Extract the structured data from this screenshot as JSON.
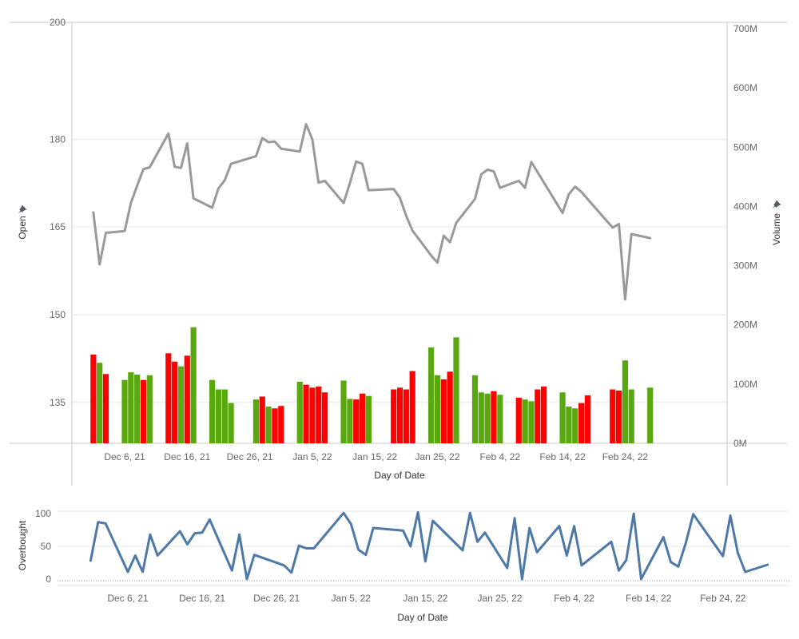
{
  "chart_data": [
    {
      "type": "line+bar",
      "xlabel": "Day of Date",
      "y_left_label": "Open",
      "y_right_label": "Volume",
      "y_left_ticks": [
        200,
        180,
        165,
        150,
        135
      ],
      "y_left_range": [
        128,
        200
      ],
      "y_right_ticks": [
        "0M",
        "100M",
        "200M",
        "300M",
        "400M",
        "500M",
        "600M",
        "700M"
      ],
      "y_right_range": [
        0,
        700
      ],
      "x_ticks": [
        "Dec 6, 21",
        "Dec 16, 21",
        "Dec 26, 21",
        "Jan 5, 22",
        "Jan 15, 22",
        "Jan 25, 22",
        "Feb 4, 22",
        "Feb 14, 22",
        "Feb 24, 22"
      ],
      "colors": {
        "line": "#999999",
        "up": "#59a80f",
        "down": "#ff0000",
        "grid": "#e6e6e6",
        "axis": "#c8c8c8"
      },
      "series": [
        {
          "name": "Open",
          "mark": "line",
          "points": [
            [
              "2021-12-01",
              167.5
            ],
            [
              "2021-12-02",
              158.6
            ],
            [
              "2021-12-03",
              164.0
            ],
            [
              "2021-12-06",
              164.3
            ],
            [
              "2021-12-07",
              169.1
            ],
            [
              "2021-12-08",
              172.1
            ],
            [
              "2021-12-09",
              174.9
            ],
            [
              "2021-12-10",
              175.2
            ],
            [
              "2021-12-13",
              181.0
            ],
            [
              "2021-12-14",
              175.3
            ],
            [
              "2021-12-15",
              175.1
            ],
            [
              "2021-12-16",
              179.3
            ],
            [
              "2021-12-17",
              169.9
            ],
            [
              "2021-12-20",
              168.3
            ],
            [
              "2021-12-21",
              171.6
            ],
            [
              "2021-12-22",
              173.0
            ],
            [
              "2021-12-23",
              175.8
            ],
            [
              "2021-12-27",
              177.1
            ],
            [
              "2021-12-28",
              180.2
            ],
            [
              "2021-12-29",
              179.5
            ],
            [
              "2021-12-30",
              179.6
            ],
            [
              "2021-12-31",
              178.4
            ],
            [
              "2022-01-03",
              177.9
            ],
            [
              "2022-01-04",
              182.6
            ],
            [
              "2022-01-05",
              180.0
            ],
            [
              "2022-01-06",
              172.6
            ],
            [
              "2022-01-07",
              172.9
            ],
            [
              "2022-01-10",
              169.1
            ],
            [
              "2022-01-11",
              172.5
            ],
            [
              "2022-01-12",
              176.2
            ],
            [
              "2022-01-13",
              175.8
            ],
            [
              "2022-01-14",
              171.3
            ],
            [
              "2022-01-18",
              171.5
            ],
            [
              "2022-01-19",
              170.0
            ],
            [
              "2022-01-20",
              166.9
            ],
            [
              "2022-01-21",
              164.4
            ],
            [
              "2022-01-24",
              160.1
            ],
            [
              "2022-01-25",
              158.9
            ],
            [
              "2022-01-26",
              163.5
            ],
            [
              "2022-01-27",
              162.4
            ],
            [
              "2022-01-28",
              165.7
            ],
            [
              "2022-01-31",
              169.8
            ],
            [
              "2022-02-01",
              174.0
            ],
            [
              "2022-02-02",
              174.8
            ],
            [
              "2022-02-03",
              174.5
            ],
            [
              "2022-02-04",
              171.7
            ],
            [
              "2022-02-07",
              172.9
            ],
            [
              "2022-02-08",
              171.7
            ],
            [
              "2022-02-09",
              176.1
            ],
            [
              "2022-02-14",
              167.4
            ],
            [
              "2022-02-15",
              170.6
            ],
            [
              "2022-02-16",
              171.9
            ],
            [
              "2022-02-17",
              171.0
            ],
            [
              "2022-02-22",
              164.9
            ],
            [
              "2022-02-23",
              165.5
            ],
            [
              "2022-02-24",
              152.6
            ],
            [
              "2022-02-25",
              163.8
            ],
            [
              "2022-02-28",
              163.1
            ]
          ]
        },
        {
          "name": "Volume",
          "mark": "bar",
          "points": [
            [
              "2021-12-01",
              150,
              "down"
            ],
            [
              "2021-12-02",
              136,
              "up"
            ],
            [
              "2021-12-03",
              117,
              "down"
            ],
            [
              "2021-12-06",
              107,
              "up"
            ],
            [
              "2021-12-07",
              120,
              "up"
            ],
            [
              "2021-12-08",
              116,
              "up"
            ],
            [
              "2021-12-09",
              107,
              "down"
            ],
            [
              "2021-12-10",
              115,
              "up"
            ],
            [
              "2021-12-13",
              152,
              "down"
            ],
            [
              "2021-12-14",
              138,
              "down"
            ],
            [
              "2021-12-15",
              130,
              "up"
            ],
            [
              "2021-12-16",
              148,
              "down"
            ],
            [
              "2021-12-17",
              196,
              "up"
            ],
            [
              "2021-12-20",
              107,
              "up"
            ],
            [
              "2021-12-21",
              91,
              "up"
            ],
            [
              "2021-12-22",
              91,
              "up"
            ],
            [
              "2021-12-23",
              68,
              "up"
            ],
            [
              "2021-12-27",
              74,
              "up"
            ],
            [
              "2021-12-28",
              79,
              "down"
            ],
            [
              "2021-12-29",
              62,
              "up"
            ],
            [
              "2021-12-30",
              59,
              "down"
            ],
            [
              "2021-12-31",
              63,
              "down"
            ],
            [
              "2022-01-03",
              104,
              "up"
            ],
            [
              "2022-01-04",
              99,
              "down"
            ],
            [
              "2022-01-05",
              94,
              "down"
            ],
            [
              "2022-01-06",
              96,
              "down"
            ],
            [
              "2022-01-07",
              86,
              "down"
            ],
            [
              "2022-01-10",
              106,
              "up"
            ],
            [
              "2022-01-11",
              75,
              "up"
            ],
            [
              "2022-01-12",
              74,
              "down"
            ],
            [
              "2022-01-13",
              84,
              "down"
            ],
            [
              "2022-01-14",
              80,
              "up"
            ],
            [
              "2022-01-18",
              91,
              "down"
            ],
            [
              "2022-01-19",
              94,
              "down"
            ],
            [
              "2022-01-20",
              91,
              "down"
            ],
            [
              "2022-01-21",
              122,
              "down"
            ],
            [
              "2022-01-24",
              162,
              "up"
            ],
            [
              "2022-01-25",
              115,
              "up"
            ],
            [
              "2022-01-26",
              108,
              "down"
            ],
            [
              "2022-01-27",
              121,
              "down"
            ],
            [
              "2022-01-28",
              179,
              "up"
            ],
            [
              "2022-01-31",
              115,
              "up"
            ],
            [
              "2022-02-01",
              86,
              "up"
            ],
            [
              "2022-02-02",
              84,
              "up"
            ],
            [
              "2022-02-03",
              88,
              "down"
            ],
            [
              "2022-02-04",
              82,
              "up"
            ],
            [
              "2022-02-07",
              77,
              "down"
            ],
            [
              "2022-02-08",
              74,
              "up"
            ],
            [
              "2022-02-09",
              71,
              "up"
            ],
            [
              "2022-02-10",
              91,
              "down"
            ],
            [
              "2022-02-11",
              96,
              "down"
            ],
            [
              "2022-02-14",
              86,
              "up"
            ],
            [
              "2022-02-15",
              62,
              "up"
            ],
            [
              "2022-02-16",
              59,
              "up"
            ],
            [
              "2022-02-17",
              68,
              "down"
            ],
            [
              "2022-02-18",
              81,
              "down"
            ],
            [
              "2022-02-22",
              91,
              "down"
            ],
            [
              "2022-02-23",
              89,
              "down"
            ],
            [
              "2022-02-24",
              140,
              "up"
            ],
            [
              "2022-02-25",
              91,
              "up"
            ],
            [
              "2022-02-28",
              94,
              "up"
            ]
          ]
        }
      ]
    },
    {
      "type": "line",
      "xlabel": "Day of Date",
      "ylabel": "Overbought",
      "y_ticks": [
        100,
        50,
        0
      ],
      "y_range": [
        -5,
        105
      ],
      "x_ticks": [
        "Dec 6, 21",
        "Dec 16, 21",
        "Dec 26, 21",
        "Jan 5, 22",
        "Jan 15, 22",
        "Jan 25, 22",
        "Feb 4, 22",
        "Feb 14, 22",
        "Feb 24, 22"
      ],
      "colors": {
        "line": "#4e79a7",
        "grid": "#e6e6e6",
        "zero": "#999999"
      },
      "series": [
        {
          "name": "Overbought",
          "points": [
            [
              "2021-12-01",
              28
            ],
            [
              "2021-12-02",
              87
            ],
            [
              "2021-12-03",
              85
            ],
            [
              "2021-12-06",
              11
            ],
            [
              "2021-12-07",
              36
            ],
            [
              "2021-12-08",
              11
            ],
            [
              "2021-12-09",
              68
            ],
            [
              "2021-12-10",
              36
            ],
            [
              "2021-12-13",
              73
            ],
            [
              "2021-12-14",
              53
            ],
            [
              "2021-12-15",
              70
            ],
            [
              "2021-12-16",
              71
            ],
            [
              "2021-12-17",
              91
            ],
            [
              "2021-12-20",
              13
            ],
            [
              "2021-12-21",
              68
            ],
            [
              "2021-12-22",
              0
            ],
            [
              "2021-12-23",
              37
            ],
            [
              "2021-12-27",
              21
            ],
            [
              "2021-12-28",
              10
            ],
            [
              "2021-12-29",
              51
            ],
            [
              "2021-12-30",
              47
            ],
            [
              "2021-12-31",
              47
            ],
            [
              "2022-01-04",
              101
            ],
            [
              "2022-01-05",
              84
            ],
            [
              "2022-01-06",
              45
            ],
            [
              "2022-01-07",
              37
            ],
            [
              "2022-01-08",
              78
            ],
            [
              "2022-01-12",
              74
            ],
            [
              "2022-01-13",
              50
            ],
            [
              "2022-01-14",
              102
            ],
            [
              "2022-01-15",
              27
            ],
            [
              "2022-01-16",
              89
            ],
            [
              "2022-01-20",
              44
            ],
            [
              "2022-01-21",
              101
            ],
            [
              "2022-01-22",
              57
            ],
            [
              "2022-01-23",
              71
            ],
            [
              "2022-01-26",
              17
            ],
            [
              "2022-01-27",
              93
            ],
            [
              "2022-01-28",
              0
            ],
            [
              "2022-01-29",
              78
            ],
            [
              "2022-01-30",
              41
            ],
            [
              "2022-02-02",
              81
            ],
            [
              "2022-02-03",
              36
            ],
            [
              "2022-02-04",
              81
            ],
            [
              "2022-02-05",
              21
            ],
            [
              "2022-02-09",
              57
            ],
            [
              "2022-02-10",
              13
            ],
            [
              "2022-02-11",
              29
            ],
            [
              "2022-02-12",
              100
            ],
            [
              "2022-02-13",
              0
            ],
            [
              "2022-02-16",
              64
            ],
            [
              "2022-02-17",
              26
            ],
            [
              "2022-02-18",
              19
            ],
            [
              "2022-02-19",
              55
            ],
            [
              "2022-02-20",
              99
            ],
            [
              "2022-02-24",
              35
            ],
            [
              "2022-02-25",
              97
            ],
            [
              "2022-02-26",
              40
            ],
            [
              "2022-02-27",
              11
            ],
            [
              "2022-03-02",
              22
            ]
          ]
        }
      ]
    }
  ]
}
